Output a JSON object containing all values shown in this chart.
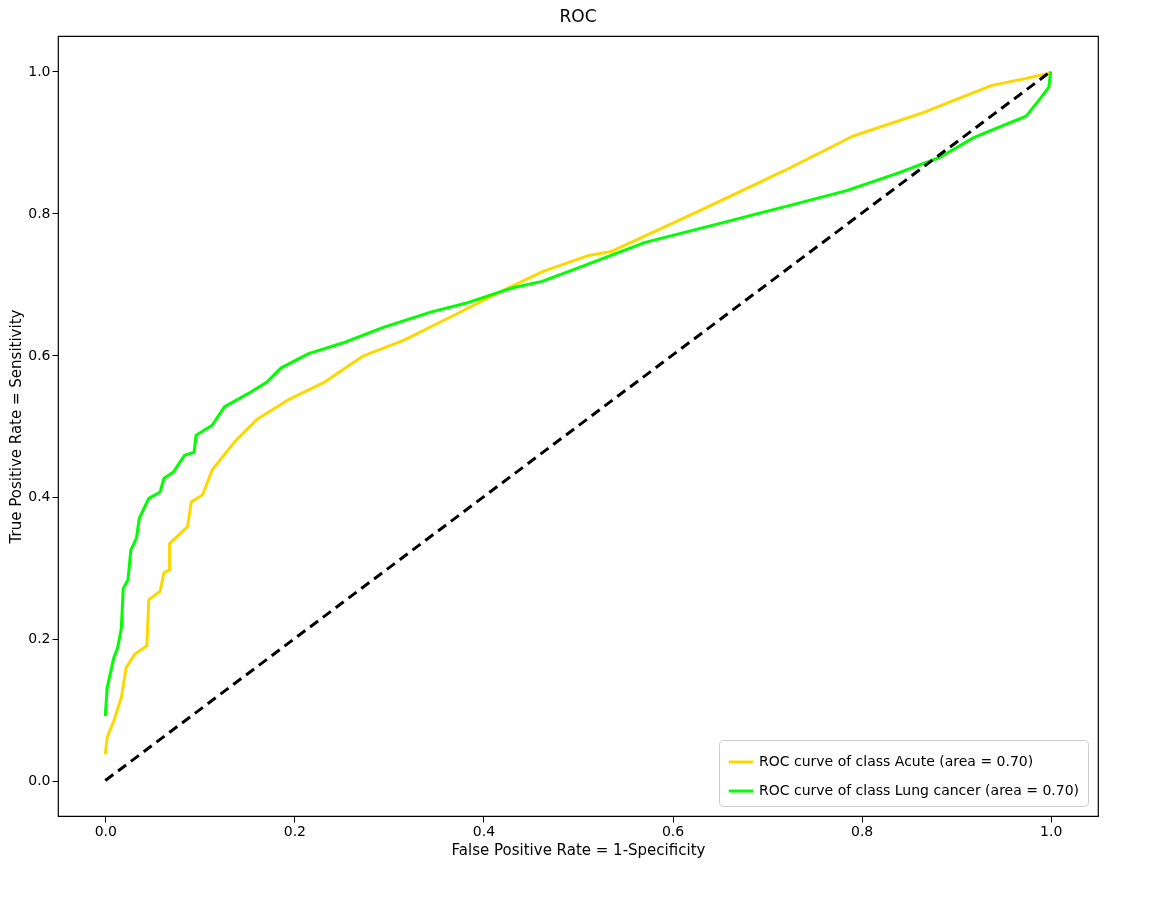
{
  "chart_data": {
    "type": "line",
    "title": "ROC",
    "xlabel": "False Positive Rate = 1-Specificity",
    "ylabel": "True Positive Rate = Sensitivity",
    "xlim": [
      -0.05,
      1.05
    ],
    "ylim": [
      -0.05,
      1.05
    ],
    "xticks": [
      {
        "value": 0,
        "label": "0.0"
      },
      {
        "value": 0.2,
        "label": "0.2"
      },
      {
        "value": 0.4,
        "label": "0.4"
      },
      {
        "value": 0.6,
        "label": "0.6"
      },
      {
        "value": 0.8,
        "label": "0.8"
      },
      {
        "value": 1,
        "label": "1.0"
      }
    ],
    "yticks": [
      {
        "value": 0,
        "label": "0.0"
      },
      {
        "value": 0.2,
        "label": "0.2"
      },
      {
        "value": 0.4,
        "label": "0.4"
      },
      {
        "value": 0.6,
        "label": "0.6"
      },
      {
        "value": 0.8,
        "label": "0.8"
      },
      {
        "value": 1,
        "label": "1.0"
      }
    ],
    "grid": false,
    "legend": "bottom right",
    "series": [
      {
        "name": "ROC curve of class Acute (area = 0.70)",
        "color": "#ffd700",
        "line_style": "solid",
        "x": [
          0,
          0.002,
          0.009,
          0.017,
          0.022,
          0.031,
          0.044,
          0.046,
          0.058,
          0.062,
          0.068,
          0.068,
          0.087,
          0.091,
          0.103,
          0.113,
          0.137,
          0.161,
          0.195,
          0.232,
          0.273,
          0.316,
          0.373,
          0.416,
          0.463,
          0.51,
          0.535,
          0.626,
          0.718,
          0.791,
          0.865,
          0.937,
          0.998,
          1.0
        ],
        "values": [
          0.037,
          0.061,
          0.084,
          0.117,
          0.159,
          0.178,
          0.19,
          0.255,
          0.267,
          0.293,
          0.297,
          0.334,
          0.358,
          0.393,
          0.403,
          0.438,
          0.478,
          0.51,
          0.538,
          0.562,
          0.599,
          0.621,
          0.659,
          0.688,
          0.718,
          0.74,
          0.746,
          0.802,
          0.86,
          0.909,
          0.942,
          0.98,
          0.997,
          1.0
        ]
      },
      {
        "name": "ROC curve of class Lung cancer (area = 0.70)",
        "color": "#00ff00",
        "line_style": "solid",
        "x": [
          0,
          0.002,
          0.009,
          0.013,
          0.017,
          0.019,
          0.024,
          0.027,
          0.033,
          0.036,
          0.046,
          0.058,
          0.062,
          0.072,
          0.084,
          0.094,
          0.096,
          0.113,
          0.126,
          0.154,
          0.171,
          0.186,
          0.215,
          0.251,
          0.294,
          0.345,
          0.381,
          0.431,
          0.462,
          0.51,
          0.571,
          0.645,
          0.718,
          0.784,
          0.839,
          0.883,
          0.919,
          0.974,
          0.989,
          0.998,
          1.0
        ],
        "values": [
          0.091,
          0.131,
          0.173,
          0.187,
          0.215,
          0.271,
          0.283,
          0.325,
          0.342,
          0.37,
          0.398,
          0.407,
          0.426,
          0.435,
          0.459,
          0.463,
          0.487,
          0.501,
          0.527,
          0.548,
          0.562,
          0.582,
          0.602,
          0.617,
          0.639,
          0.661,
          0.673,
          0.695,
          0.704,
          0.728,
          0.759,
          0.784,
          0.809,
          0.832,
          0.857,
          0.879,
          0.907,
          0.937,
          0.962,
          0.978,
          1.0
        ]
      },
      {
        "color": "#000000",
        "line_style": "dashed",
        "x": [
          0,
          1
        ],
        "values": [
          0,
          1
        ]
      }
    ]
  }
}
